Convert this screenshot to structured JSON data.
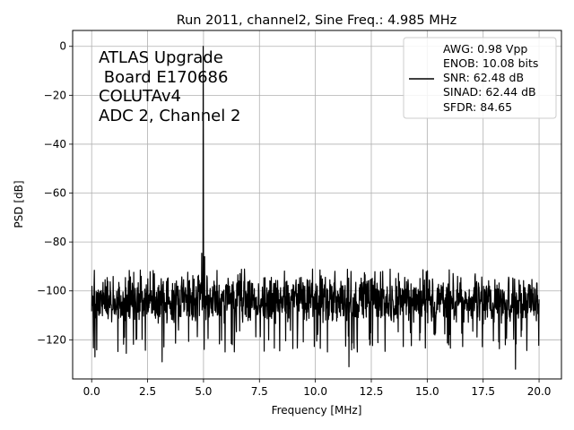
{
  "chart_data": {
    "type": "line",
    "title": "Run 2011, channel2, Sine Freq.: 4.985 MHz",
    "xlabel": "Frequency [MHz]",
    "ylabel": "PSD [dB]",
    "xlim": [
      -0.85,
      21.0
    ],
    "ylim": [
      -136,
      6.5
    ],
    "xticks": [
      0.0,
      2.5,
      5.0,
      7.5,
      10.0,
      12.5,
      15.0,
      17.5,
      20.0
    ],
    "xtick_labels": [
      "0.0",
      "2.5",
      "5.0",
      "7.5",
      "10.0",
      "12.5",
      "15.0",
      "17.5",
      "20.0"
    ],
    "yticks": [
      0,
      -20,
      -40,
      -60,
      -80,
      -100,
      -120
    ],
    "ytick_labels": [
      "0",
      "−20",
      "−40",
      "−60",
      "−80",
      "−100",
      "−120"
    ],
    "grid": true,
    "legend_position": "top-right",
    "annotation_lines": [
      "ATLAS Upgrade",
      " Board E170686",
      "COLUTAv4",
      "ADC 2, Channel 2"
    ],
    "legend_lines": [
      "AWG: 0.98 Vpp",
      "ENOB: 10.08 bits",
      "SNR: 62.48 dB",
      "SINAD: 62.44 dB",
      "SFDR: 84.65"
    ],
    "series": [
      {
        "color": "#000000",
        "noise_floor_mean_db": -104,
        "noise_floor_range_db": [
          -132,
          -87
        ],
        "peaks": [
          {
            "x": 4.985,
            "y": 0
          },
          {
            "x": 4.92,
            "y": -84.6
          },
          {
            "x": 5.05,
            "y": -86
          }
        ],
        "notable_dips": [
          {
            "x": 0.15,
            "y": -127
          },
          {
            "x": 1.55,
            "y": -125.5
          },
          {
            "x": 3.15,
            "y": -129
          },
          {
            "x": 8.4,
            "y": -124.5
          },
          {
            "x": 11.5,
            "y": -131
          },
          {
            "x": 18.95,
            "y": -132
          }
        ],
        "x_range": [
          0.0,
          20.0
        ]
      }
    ]
  }
}
